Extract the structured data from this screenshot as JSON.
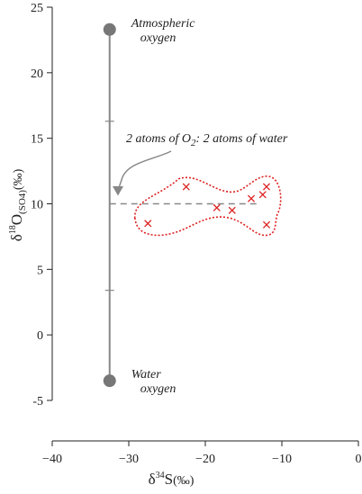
{
  "chart_data": {
    "type": "scatter",
    "xlim": [
      -40,
      0
    ],
    "ylim": [
      -5,
      25
    ],
    "x_ticks": [
      "−40",
      "−30",
      "−20",
      "−10",
      "0"
    ],
    "y_ticks": [
      "25",
      "20",
      "15",
      "10",
      "5",
      "0",
      "-5"
    ],
    "x_tick_values": [
      -40,
      -30,
      -20,
      -10,
      0
    ],
    "y_tick_values": [
      25,
      20,
      15,
      10,
      5,
      0,
      -5
    ],
    "xlabel": {
      "delta": "δ",
      "sup": "34",
      "main": "S",
      "unit": "(‰)"
    },
    "ylabel": {
      "delta": "δ",
      "sup": "18",
      "main": "O",
      "sub": "(SO4)",
      "unit": "(‰)"
    },
    "grid": false,
    "endmembers": [
      {
        "x": -32.5,
        "y": 23.3,
        "label_lines": [
          "Atmospheric",
          "oxygen"
        ]
      },
      {
        "x": -32.5,
        "y": -3.5,
        "label_lines": [
          "Water",
          "oxygen"
        ]
      }
    ],
    "vertical_line_x": -32.5,
    "minor_marks_y": [
      16.3,
      3.4
    ],
    "reference_line": {
      "y": 10,
      "x_range": [
        -32.5,
        -13
      ],
      "annotation": {
        "prefix": "2 atoms of O",
        "sub": "2",
        "suffix": ": 2 atoms of water"
      }
    },
    "samples": [
      {
        "x": -27.5,
        "y": 8.5
      },
      {
        "x": -22.5,
        "y": 11.3
      },
      {
        "x": -18.5,
        "y": 9.7
      },
      {
        "x": -16.5,
        "y": 9.5
      },
      {
        "x": -14.0,
        "y": 10.4
      },
      {
        "x": -12.5,
        "y": 10.7
      },
      {
        "x": -12.0,
        "y": 11.3
      },
      {
        "x": -12.0,
        "y": 8.4
      }
    ],
    "colors": {
      "axis": "#222222",
      "line": "#888888",
      "endmember": "#777777",
      "sample": "#dd2020",
      "envelope": "#dd2020",
      "reference": "#888888"
    }
  }
}
